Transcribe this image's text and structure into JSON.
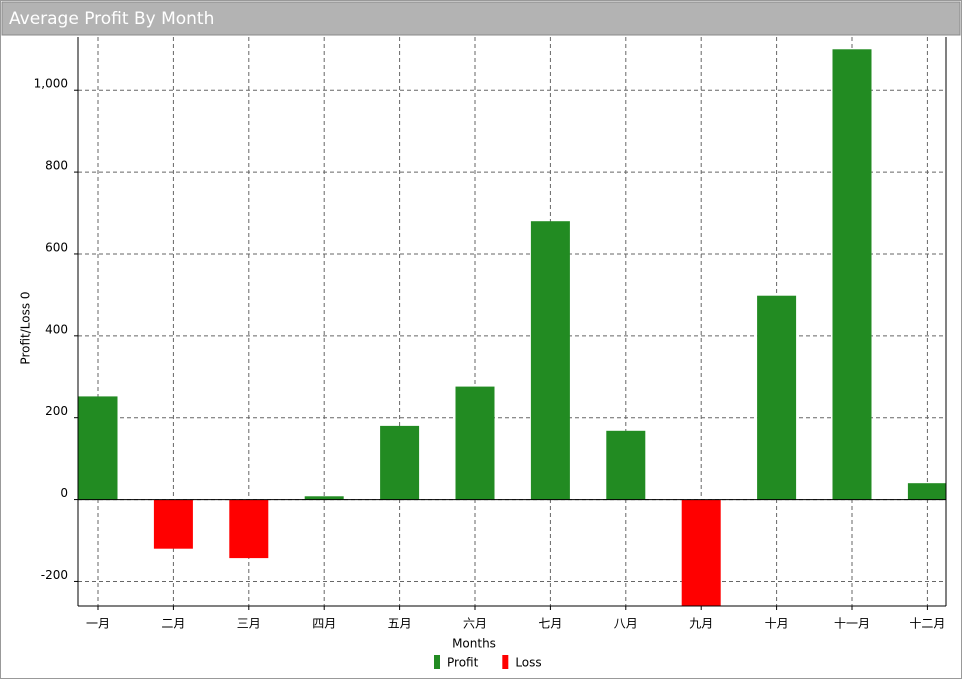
{
  "chart_data": {
    "type": "bar",
    "title": "Average Profit By Month",
    "categories": [
      "一月",
      "二月",
      "三月",
      "四月",
      "五月",
      "六月",
      "七月",
      "八月",
      "九月",
      "十月",
      "十一月",
      "十二月"
    ],
    "series": [
      {
        "name": "Profit",
        "color": "#228b22",
        "values": [
          252,
          null,
          null,
          8,
          180,
          276,
          680,
          168,
          null,
          498,
          1100,
          40
        ]
      },
      {
        "name": "Loss",
        "color": "#ff0000",
        "values": [
          null,
          -120,
          -143,
          null,
          null,
          null,
          null,
          null,
          -260,
          null,
          null,
          null
        ]
      }
    ],
    "x_label": "Months",
    "y_label": "Profit/Loss 0",
    "ylim": [
      -260,
      1130
    ],
    "yticks": [
      -200,
      0,
      200,
      400,
      600,
      800,
      {
        "value": 1000,
        "label": "1,000"
      }
    ],
    "grid": true,
    "legend": "bottom"
  }
}
